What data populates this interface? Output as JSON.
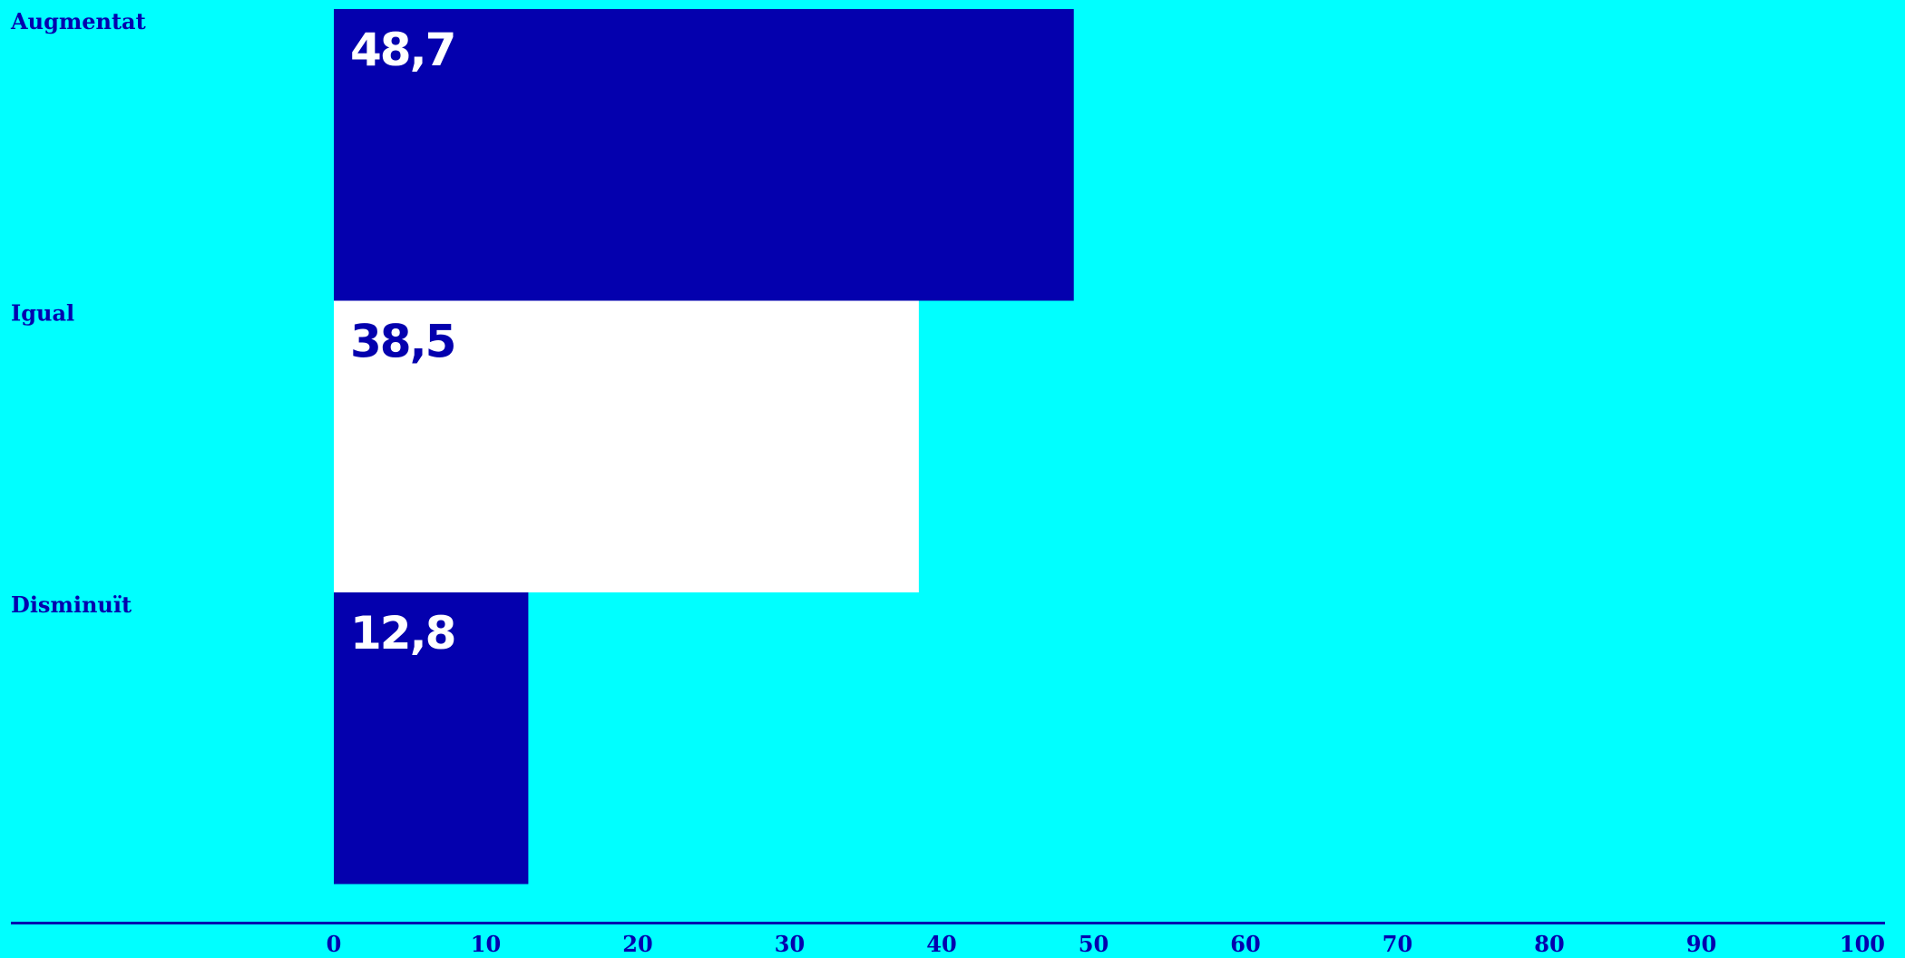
{
  "colors": {
    "background": "#00FFFF",
    "primary": "#0400AE",
    "highlight": "#FFFFFF"
  },
  "chart_data": {
    "type": "bar",
    "orientation": "horizontal",
    "title": "",
    "xlabel": "",
    "ylabel": "",
    "categories": [
      "Augmentat",
      "Igual",
      "Disminuït"
    ],
    "values": [
      48.7,
      38.5,
      12.8
    ],
    "value_labels": [
      "48,7",
      "38,5",
      "12,8"
    ],
    "bar_colors": [
      "#0400AE",
      "#FFFFFF",
      "#0400AE"
    ],
    "value_label_colors": [
      "#FFFFFF",
      "#0400AE",
      "#FFFFFF"
    ],
    "xlim": [
      0,
      100
    ],
    "x_ticks": [
      0,
      10,
      20,
      30,
      40,
      50,
      60,
      70,
      80,
      90,
      100
    ],
    "x_tick_labels": [
      "0",
      "10",
      "20",
      "30",
      "40",
      "50",
      "60",
      "70",
      "80",
      "90",
      "100"
    ],
    "grid": false,
    "legend": "none"
  }
}
